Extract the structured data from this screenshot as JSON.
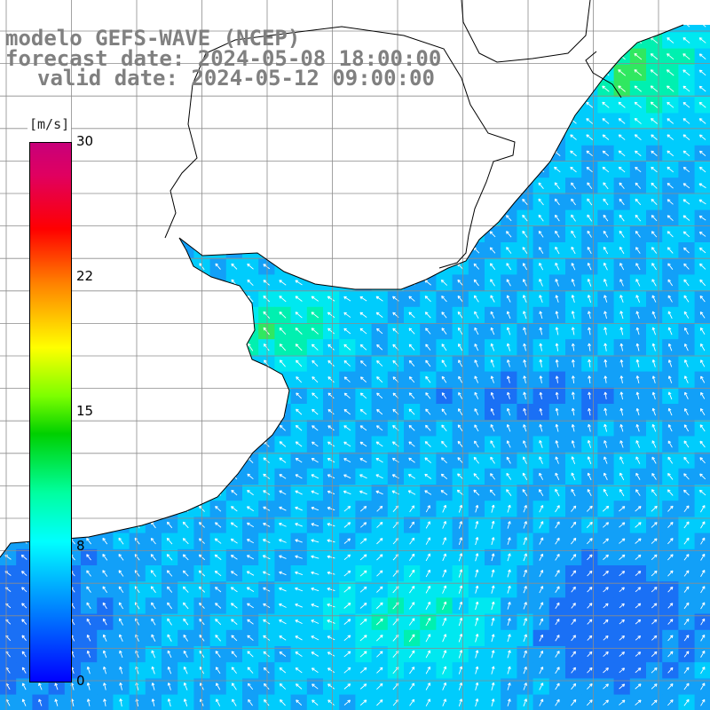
{
  "header": {
    "line1": "modelo GEFS-WAVE (NCEP)",
    "line2": "forecast date: 2024-05-08 18:00:00",
    "line3": "valid date: 2024-05-12 09:00:00"
  },
  "colorbar": {
    "units": "[m/s]",
    "ticks": [
      "30",
      "22",
      "15",
      "8",
      "0"
    ],
    "min": 0,
    "max": 30
  },
  "map": {
    "variable": "wind speed and direction (arrows)",
    "colors": {
      "ocean_low": "#1e7cf0",
      "ocean_mid": "#00d8ff",
      "ocean_high": "#00f090",
      "strong": "#40e040",
      "land": "#ffffff",
      "coast": "#000000",
      "grid": "#8c8c8c",
      "arrow": "#ffffff"
    }
  }
}
